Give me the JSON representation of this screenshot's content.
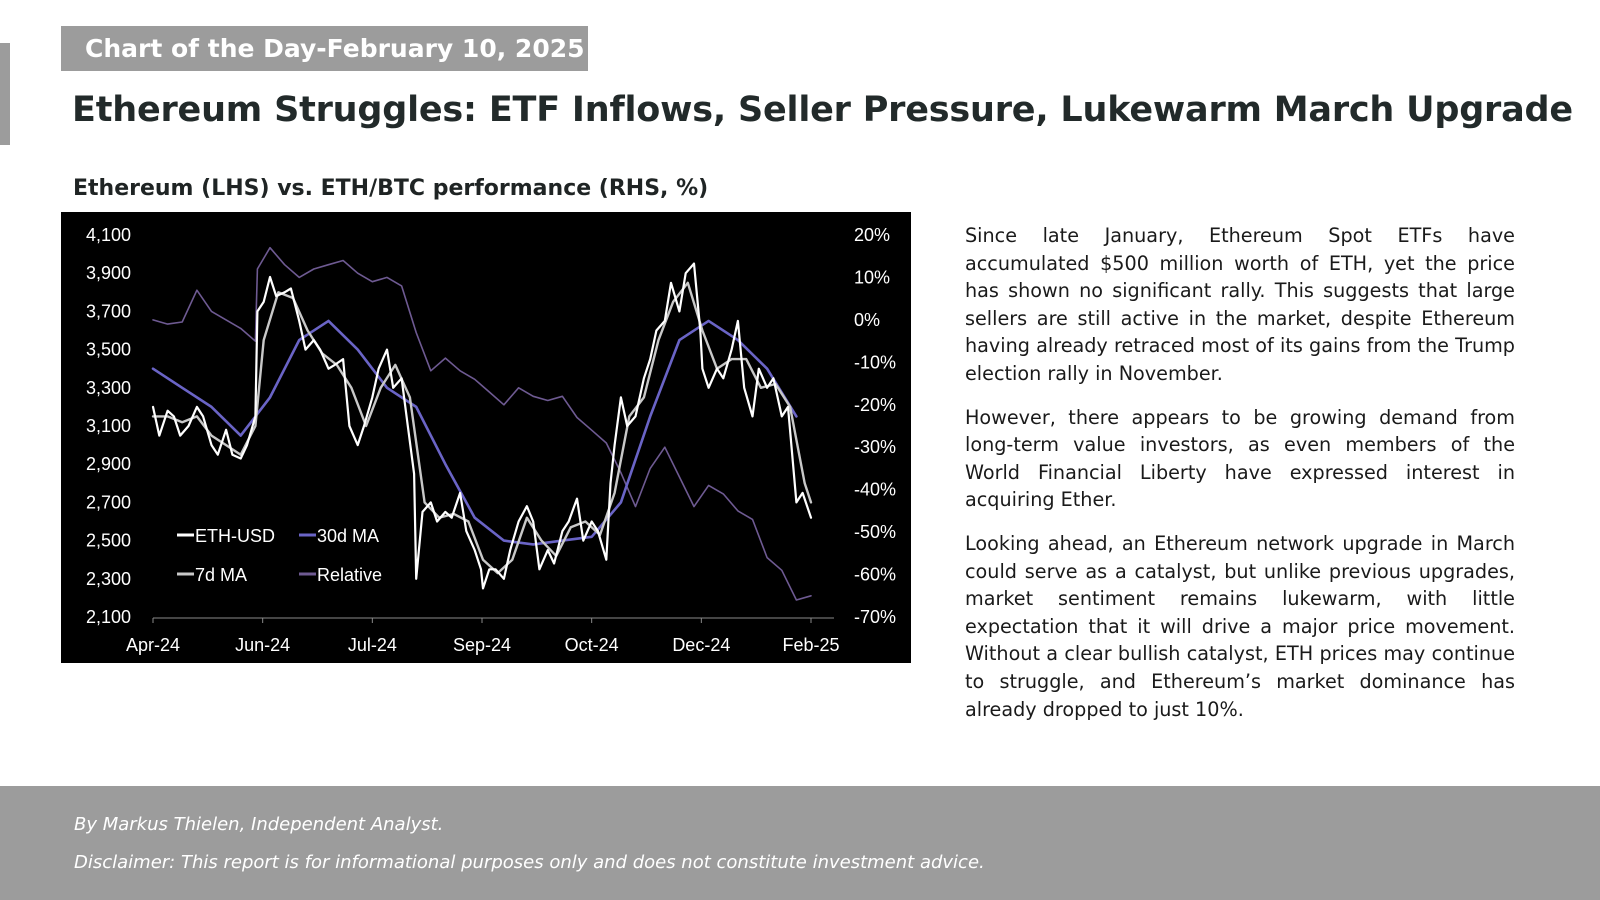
{
  "header": {
    "tag": "Chart of the Day-February 10, 2025",
    "title": "Ethereum Struggles: ETF Inflows, Seller Pressure, Lukewarm March Upgrade"
  },
  "chart_data": {
    "type": "line",
    "title": "Ethereum (LHS) vs. ETH/BTC performance (RHS, %)",
    "x_ticks": [
      "Apr-24",
      "Jun-24",
      "Jul-24",
      "Sep-24",
      "Oct-24",
      "Dec-24",
      "Feb-25"
    ],
    "x_range": [
      "2024-04-01",
      "2025-02-10"
    ],
    "ylim_left": [
      2100,
      4100
    ],
    "yticks_left": [
      "4,100",
      "3,900",
      "3,700",
      "3,500",
      "3,300",
      "3,100",
      "2,900",
      "2,700",
      "2,500",
      "2,300",
      "2,100"
    ],
    "ylim_right": [
      -70,
      20
    ],
    "yticks_right": [
      "20%",
      "10%",
      "0%",
      "-10%",
      "-20%",
      "-30%",
      "-40%",
      "-50%",
      "-60%",
      "-70%"
    ],
    "grid": false,
    "legend_position": "bottom-left",
    "legend": [
      "ETH-USD",
      "30d MA",
      "7d MA",
      "Relative"
    ],
    "series": [
      {
        "name": "ETH-USD",
        "axis": "left",
        "color": "#ffffff",
        "points": [
          [
            "2024-04-01",
            3200
          ],
          [
            "2024-04-04",
            3050
          ],
          [
            "2024-04-08",
            3180
          ],
          [
            "2024-04-11",
            3150
          ],
          [
            "2024-04-14",
            3050
          ],
          [
            "2024-04-18",
            3100
          ],
          [
            "2024-04-22",
            3200
          ],
          [
            "2024-04-25",
            3150
          ],
          [
            "2024-04-29",
            3000
          ],
          [
            "2024-05-02",
            2950
          ],
          [
            "2024-05-06",
            3080
          ],
          [
            "2024-05-09",
            2950
          ],
          [
            "2024-05-13",
            2930
          ],
          [
            "2024-05-16",
            3000
          ],
          [
            "2024-05-20",
            3150
          ],
          [
            "2024-05-21",
            3700
          ],
          [
            "2024-05-24",
            3750
          ],
          [
            "2024-05-27",
            3880
          ],
          [
            "2024-05-30",
            3780
          ],
          [
            "2024-06-03",
            3800
          ],
          [
            "2024-06-06",
            3820
          ],
          [
            "2024-06-10",
            3650
          ],
          [
            "2024-06-13",
            3500
          ],
          [
            "2024-06-17",
            3550
          ],
          [
            "2024-06-20",
            3500
          ],
          [
            "2024-06-24",
            3400
          ],
          [
            "2024-06-27",
            3420
          ],
          [
            "2024-07-01",
            3450
          ],
          [
            "2024-07-04",
            3100
          ],
          [
            "2024-07-08",
            3000
          ],
          [
            "2024-07-11",
            3100
          ],
          [
            "2024-07-15",
            3250
          ],
          [
            "2024-07-18",
            3400
          ],
          [
            "2024-07-22",
            3500
          ],
          [
            "2024-07-25",
            3300
          ],
          [
            "2024-07-29",
            3350
          ],
          [
            "2024-08-01",
            3100
          ],
          [
            "2024-08-04",
            2850
          ],
          [
            "2024-08-05",
            2300
          ],
          [
            "2024-08-08",
            2650
          ],
          [
            "2024-08-12",
            2700
          ],
          [
            "2024-08-15",
            2600
          ],
          [
            "2024-08-19",
            2650
          ],
          [
            "2024-08-22",
            2620
          ],
          [
            "2024-08-26",
            2750
          ],
          [
            "2024-08-29",
            2550
          ],
          [
            "2024-09-02",
            2450
          ],
          [
            "2024-09-05",
            2350
          ],
          [
            "2024-09-06",
            2250
          ],
          [
            "2024-09-09",
            2350
          ],
          [
            "2024-09-12",
            2350
          ],
          [
            "2024-09-16",
            2300
          ],
          [
            "2024-09-19",
            2450
          ],
          [
            "2024-09-23",
            2600
          ],
          [
            "2024-09-27",
            2680
          ],
          [
            "2024-09-30",
            2600
          ],
          [
            "2024-10-03",
            2350
          ],
          [
            "2024-10-07",
            2450
          ],
          [
            "2024-10-10",
            2380
          ],
          [
            "2024-10-14",
            2550
          ],
          [
            "2024-10-17",
            2600
          ],
          [
            "2024-10-21",
            2720
          ],
          [
            "2024-10-24",
            2500
          ],
          [
            "2024-10-28",
            2600
          ],
          [
            "2024-10-31",
            2550
          ],
          [
            "2024-11-04",
            2400
          ],
          [
            "2024-11-06",
            2800
          ],
          [
            "2024-11-08",
            3000
          ],
          [
            "2024-11-11",
            3250
          ],
          [
            "2024-11-14",
            3100
          ],
          [
            "2024-11-18",
            3150
          ],
          [
            "2024-11-22",
            3350
          ],
          [
            "2024-11-25",
            3450
          ],
          [
            "2024-11-28",
            3600
          ],
          [
            "2024-12-02",
            3650
          ],
          [
            "2024-12-05",
            3850
          ],
          [
            "2024-12-09",
            3700
          ],
          [
            "2024-12-12",
            3900
          ],
          [
            "2024-12-16",
            3950
          ],
          [
            "2024-12-19",
            3600
          ],
          [
            "2024-12-20",
            3400
          ],
          [
            "2024-12-23",
            3300
          ],
          [
            "2024-12-27",
            3400
          ],
          [
            "2024-12-30",
            3350
          ],
          [
            "2025-01-03",
            3500
          ],
          [
            "2025-01-06",
            3650
          ],
          [
            "2025-01-09",
            3300
          ],
          [
            "2025-01-13",
            3150
          ],
          [
            "2025-01-16",
            3400
          ],
          [
            "2025-01-20",
            3300
          ],
          [
            "2025-01-23",
            3350
          ],
          [
            "2025-01-27",
            3150
          ],
          [
            "2025-01-30",
            3200
          ],
          [
            "2025-02-03",
            2700
          ],
          [
            "2025-02-06",
            2750
          ],
          [
            "2025-02-10",
            2620
          ]
        ]
      },
      {
        "name": "7d MA",
        "axis": "left",
        "color": "#c8c8c8",
        "points": [
          [
            "2024-04-01",
            3150
          ],
          [
            "2024-04-08",
            3150
          ],
          [
            "2024-04-15",
            3120
          ],
          [
            "2024-04-22",
            3150
          ],
          [
            "2024-04-29",
            3050
          ],
          [
            "2024-05-06",
            3000
          ],
          [
            "2024-05-13",
            2950
          ],
          [
            "2024-05-20",
            3100
          ],
          [
            "2024-05-24",
            3550
          ],
          [
            "2024-05-31",
            3800
          ],
          [
            "2024-06-07",
            3770
          ],
          [
            "2024-06-14",
            3600
          ],
          [
            "2024-06-21",
            3480
          ],
          [
            "2024-06-28",
            3420
          ],
          [
            "2024-07-05",
            3300
          ],
          [
            "2024-07-12",
            3100
          ],
          [
            "2024-07-19",
            3300
          ],
          [
            "2024-07-26",
            3420
          ],
          [
            "2024-08-02",
            3250
          ],
          [
            "2024-08-09",
            2700
          ],
          [
            "2024-08-16",
            2620
          ],
          [
            "2024-08-23",
            2640
          ],
          [
            "2024-08-30",
            2600
          ],
          [
            "2024-09-06",
            2400
          ],
          [
            "2024-09-13",
            2330
          ],
          [
            "2024-09-20",
            2400
          ],
          [
            "2024-09-27",
            2620
          ],
          [
            "2024-10-04",
            2500
          ],
          [
            "2024-10-11",
            2420
          ],
          [
            "2024-10-18",
            2570
          ],
          [
            "2024-10-25",
            2600
          ],
          [
            "2024-11-01",
            2530
          ],
          [
            "2024-11-08",
            2750
          ],
          [
            "2024-11-15",
            3150
          ],
          [
            "2024-11-22",
            3250
          ],
          [
            "2024-11-29",
            3550
          ],
          [
            "2024-12-06",
            3750
          ],
          [
            "2024-12-13",
            3850
          ],
          [
            "2024-12-20",
            3600
          ],
          [
            "2024-12-27",
            3400
          ],
          [
            "2025-01-03",
            3450
          ],
          [
            "2025-01-10",
            3450
          ],
          [
            "2025-01-17",
            3300
          ],
          [
            "2025-01-24",
            3320
          ],
          [
            "2025-01-31",
            3200
          ],
          [
            "2025-02-07",
            2800
          ],
          [
            "2025-02-10",
            2700
          ]
        ]
      },
      {
        "name": "30d MA",
        "axis": "left",
        "color": "#6a64c6",
        "points": [
          [
            "2024-04-01",
            3400
          ],
          [
            "2024-04-15",
            3300
          ],
          [
            "2024-04-29",
            3200
          ],
          [
            "2024-05-13",
            3050
          ],
          [
            "2024-05-27",
            3250
          ],
          [
            "2024-06-10",
            3550
          ],
          [
            "2024-06-24",
            3650
          ],
          [
            "2024-07-08",
            3500
          ],
          [
            "2024-07-22",
            3300
          ],
          [
            "2024-08-05",
            3200
          ],
          [
            "2024-08-19",
            2900
          ],
          [
            "2024-09-02",
            2620
          ],
          [
            "2024-09-16",
            2500
          ],
          [
            "2024-09-30",
            2480
          ],
          [
            "2024-10-14",
            2500
          ],
          [
            "2024-10-28",
            2520
          ],
          [
            "2024-11-11",
            2700
          ],
          [
            "2024-11-25",
            3150
          ],
          [
            "2024-12-09",
            3550
          ],
          [
            "2024-12-23",
            3650
          ],
          [
            "2025-01-06",
            3550
          ],
          [
            "2025-01-20",
            3400
          ],
          [
            "2025-02-03",
            3150
          ]
        ]
      },
      {
        "name": "Relative",
        "axis": "right",
        "color": "#6e5a92",
        "points": [
          [
            "2024-04-01",
            0
          ],
          [
            "2024-04-08",
            -1
          ],
          [
            "2024-04-15",
            -0.5
          ],
          [
            "2024-04-22",
            7
          ],
          [
            "2024-04-29",
            2
          ],
          [
            "2024-05-06",
            0
          ],
          [
            "2024-05-13",
            -2
          ],
          [
            "2024-05-20",
            -5
          ],
          [
            "2024-05-21",
            12
          ],
          [
            "2024-05-27",
            17
          ],
          [
            "2024-06-03",
            13
          ],
          [
            "2024-06-10",
            10
          ],
          [
            "2024-06-17",
            12
          ],
          [
            "2024-06-24",
            13
          ],
          [
            "2024-07-01",
            14
          ],
          [
            "2024-07-08",
            11
          ],
          [
            "2024-07-15",
            9
          ],
          [
            "2024-07-22",
            10
          ],
          [
            "2024-07-29",
            8
          ],
          [
            "2024-08-05",
            -3
          ],
          [
            "2024-08-12",
            -12
          ],
          [
            "2024-08-19",
            -9
          ],
          [
            "2024-08-26",
            -12
          ],
          [
            "2024-09-02",
            -14
          ],
          [
            "2024-09-09",
            -17
          ],
          [
            "2024-09-16",
            -20
          ],
          [
            "2024-09-23",
            -16
          ],
          [
            "2024-09-30",
            -18
          ],
          [
            "2024-10-07",
            -19
          ],
          [
            "2024-10-14",
            -18
          ],
          [
            "2024-10-21",
            -23
          ],
          [
            "2024-10-28",
            -26
          ],
          [
            "2024-11-04",
            -29
          ],
          [
            "2024-11-11",
            -36
          ],
          [
            "2024-11-18",
            -44
          ],
          [
            "2024-11-25",
            -35
          ],
          [
            "2024-12-02",
            -30
          ],
          [
            "2024-12-09",
            -37
          ],
          [
            "2024-12-16",
            -44
          ],
          [
            "2024-12-23",
            -39
          ],
          [
            "2024-12-30",
            -41
          ],
          [
            "2025-01-06",
            -45
          ],
          [
            "2025-01-13",
            -47
          ],
          [
            "2025-01-20",
            -56
          ],
          [
            "2025-01-27",
            -59
          ],
          [
            "2025-02-03",
            -66
          ],
          [
            "2025-02-10",
            -65
          ]
        ]
      }
    ]
  },
  "body": {
    "p1": "Since late January, Ethereum Spot ETFs have accumulated $500 million worth of ETH, yet the price has shown no significant rally. This suggests that large sellers are still active in the market, despite Ethereum having already retraced most of its gains from the Trump election rally in November.",
    "p2": "However, there appears to be growing demand from long-term value investors, as even members of the World Financial Liberty have expressed interest in acquiring Ether.",
    "p3": "Looking ahead, an Ethereum network upgrade in March could serve as a catalyst, but unlike previous upgrades, market sentiment remains lukewarm, with little expectation that it will drive a major price movement. Without a clear bullish catalyst, ETH prices may continue to struggle, and Ethereum’s market dominance has already dropped to just 10%."
  },
  "footer": {
    "byline": "By Markus Thielen, Independent Analyst.",
    "disclaimer": "Disclaimer: This report is for informational purposes only and does not constitute investment advice."
  }
}
